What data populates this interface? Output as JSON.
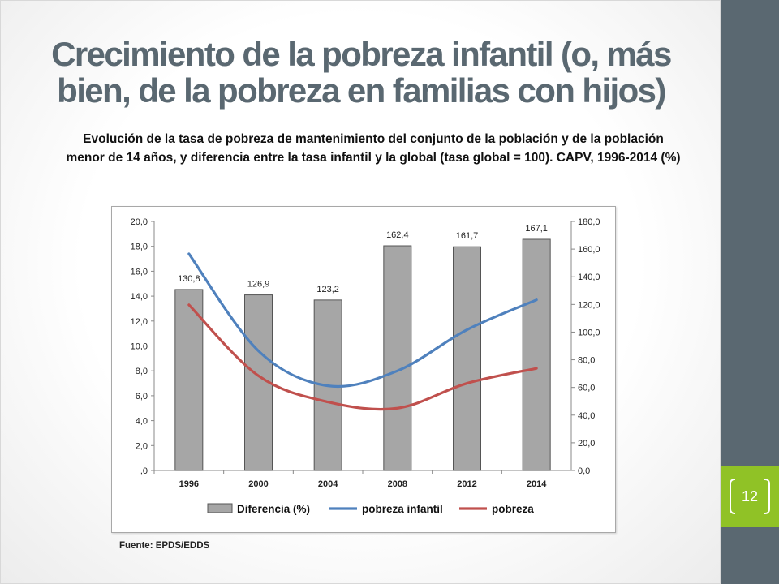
{
  "slide": {
    "title": "Crecimiento de la pobreza infantil (o, más bien, de la pobreza en familias con hijos)",
    "subtitle": "Evolución de la tasa de pobreza de mantenimiento del conjunto de la población y de la población menor de 14 años, y diferencia entre la tasa infantil y la global (tasa global = 100). CAPV, 1996-2014 (%)",
    "source": "Fuente: EPDS/EDDS",
    "page_number": "12",
    "colors": {
      "band": "#5a6871",
      "accent": "#90c226",
      "title": "#5a6871"
    }
  },
  "chart_data": {
    "type": "bar",
    "categories": [
      "1996",
      "2000",
      "2004",
      "2008",
      "2012",
      "2014"
    ],
    "series": [
      {
        "name": "Diferencia (%)",
        "type": "bar",
        "axis": "right",
        "values": [
          130.8,
          126.9,
          123.2,
          162.4,
          161.7,
          167.1
        ],
        "color": "#a6a6a6"
      },
      {
        "name": "pobreza infantil",
        "type": "line",
        "axis": "left",
        "values": [
          17.4,
          9.6,
          6.8,
          8.0,
          11.3,
          13.7
        ],
        "color": "#4f81bd"
      },
      {
        "name": "pobreza",
        "type": "line",
        "axis": "left",
        "values": [
          13.3,
          7.6,
          5.5,
          5.0,
          7.0,
          8.2
        ],
        "color": "#c0504d"
      }
    ],
    "data_labels": [
      "130,8",
      "126,9",
      "123,2",
      "162,4",
      "161,7",
      "167,1"
    ],
    "left_axis": {
      "ylim": [
        0,
        20
      ],
      "ticks": [
        "20,0",
        "18,0",
        "16,0",
        "14,0",
        "12,0",
        "10,0",
        "8,0",
        "6,0",
        "4,0",
        "2,0",
        ",0"
      ]
    },
    "right_axis": {
      "ylim": [
        0,
        180
      ],
      "ticks": [
        "180,0",
        "160,0",
        "140,0",
        "120,0",
        "100,0",
        "80,0",
        "60,0",
        "40,0",
        "20,0",
        "0,0"
      ]
    },
    "grid": false,
    "legend_position": "bottom"
  }
}
